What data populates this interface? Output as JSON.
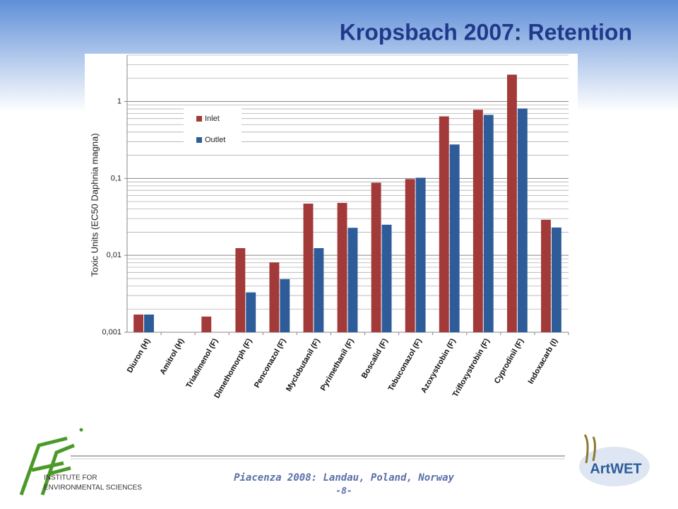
{
  "chart_data": {
    "type": "bar",
    "title": "Kropsbach 2007: Retention",
    "y_label": "Toxic Units (EC50 Daphnia magna)",
    "log_y": true,
    "grid": true,
    "legend": "upper left",
    "categories": [
      "Diuron (H)",
      "Amitrol (H)",
      "Triadimenol (F)",
      "Dimethomorph (F)",
      "Penconazol (F)",
      "Myclobutanil (F)",
      "Pyrimethanil (F)",
      "Boscalid (F)",
      "Tebuconazol (F)",
      "Azoxystrobin (F)",
      "Trifloxystrobin (F)",
      "Cyprodinil (F)",
      "Indoxacarb (I)"
    ],
    "series": [
      {
        "name": "Inlet",
        "color": "#a33a3a",
        "values": [
          0.0017,
          null,
          0.0016,
          0.0124,
          0.0081,
          0.047,
          0.048,
          0.088,
          0.098,
          0.64,
          0.78,
          2.23,
          0.029
        ]
      },
      {
        "name": "Outlet",
        "color": "#2e5c99",
        "values": [
          0.0017,
          null,
          null,
          0.0033,
          0.0049,
          0.0124,
          0.0228,
          0.025,
          0.102,
          0.276,
          0.67,
          0.81,
          0.023
        ]
      }
    ],
    "ylim": [
      0.001,
      4
    ],
    "yticks": [
      {
        "value": 0.001,
        "label": "0,001"
      },
      {
        "value": 0.01,
        "label": "0,01"
      },
      {
        "value": 0.1,
        "label": "0,1"
      },
      1
    ]
  },
  "footer": {
    "event": "Piacenza 2008: Landau, Poland, Norway",
    "page": "-8-",
    "institute_line1": "INSTITUTE FOR",
    "institute_line2": "ENVIRONMENTAL SCIENCES",
    "project": "ArtWET"
  }
}
